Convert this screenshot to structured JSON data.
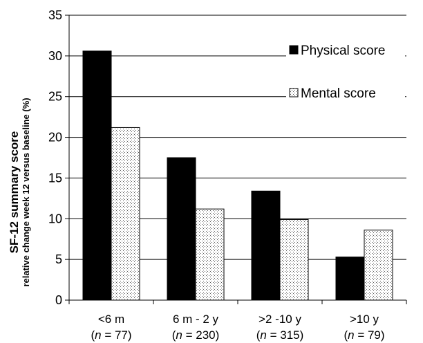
{
  "chart_data": {
    "type": "bar",
    "title": "",
    "ylabel_line1": "SF-12 summary score",
    "ylabel_line2": "relative change week 12 versus baseline (%)",
    "xlabel": "",
    "ylim": [
      0,
      35
    ],
    "yticks": [
      "0",
      "5",
      "10",
      "15",
      "20",
      "25",
      "30",
      "35"
    ],
    "grid": "horizontal",
    "legend_position": "top-right",
    "categories": [
      {
        "label": "<6 m",
        "n_prefix": "(",
        "n_symbol": "n",
        "n_value": " = 77)"
      },
      {
        "label": "6 m - 2 y",
        "n_prefix": "(",
        "n_symbol": "n",
        "n_value": " = 230)"
      },
      {
        "label": ">2 -10 y",
        "n_prefix": "(",
        "n_symbol": "n",
        "n_value": " = 315)"
      },
      {
        "label": ">10 y",
        "n_prefix": "(",
        "n_symbol": "n",
        "n_value": " = 79)"
      }
    ],
    "series": [
      {
        "name": "Physical score",
        "color": "#000000",
        "pattern": "solid",
        "values": [
          30.6,
          17.5,
          13.4,
          5.3
        ]
      },
      {
        "name": "Mental score",
        "color": "#ffffff",
        "pattern": "dotted",
        "values": [
          21.2,
          11.2,
          9.9,
          8.6
        ]
      }
    ]
  }
}
